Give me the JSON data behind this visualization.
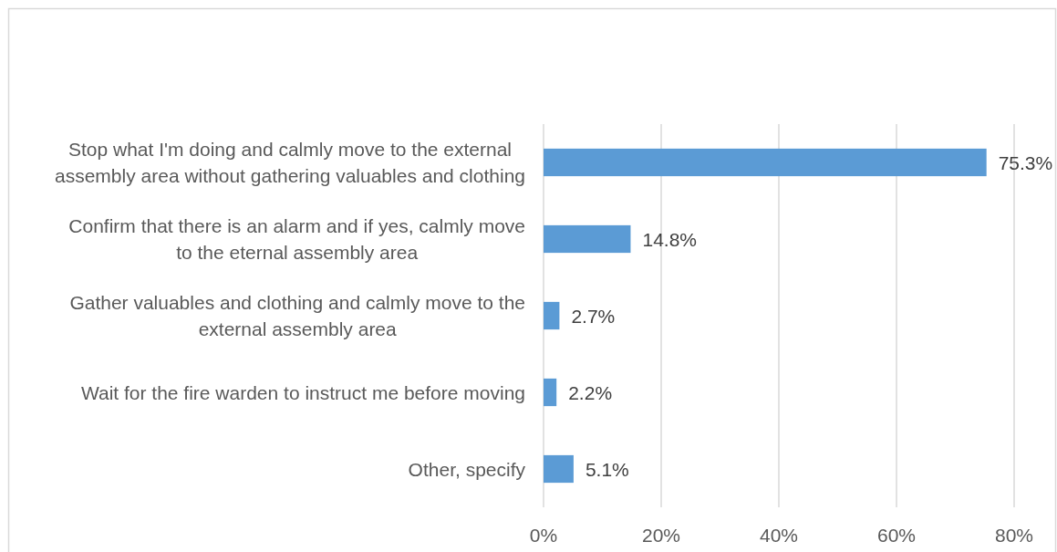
{
  "chart_data": {
    "type": "bar",
    "orientation": "horizontal",
    "categories": [
      "Stop what I'm doing and calmly move to the external assembly area without gathering valuables and clothing",
      "Confirm that there is an alarm and if yes, calmly move to the eternal assembly area",
      "Gather valuables and clothing and calmly move to the external assembly area",
      "Wait for the fire warden to instruct me before moving",
      "Other, specify"
    ],
    "values": [
      75.3,
      14.8,
      2.7,
      2.2,
      5.1
    ],
    "value_labels": [
      "75.3%",
      "14.8%",
      "2.7%",
      "2.2%",
      "5.1%"
    ],
    "color": "#5b9bd5",
    "xlim": [
      0,
      80
    ],
    "xticks": [
      {
        "value": 0,
        "label": "0%"
      },
      {
        "value": 20,
        "label": "20%"
      },
      {
        "value": 40,
        "label": "40%"
      },
      {
        "value": 60,
        "label": "60%"
      },
      {
        "value": 80,
        "label": "80%"
      }
    ],
    "grid": "x"
  }
}
